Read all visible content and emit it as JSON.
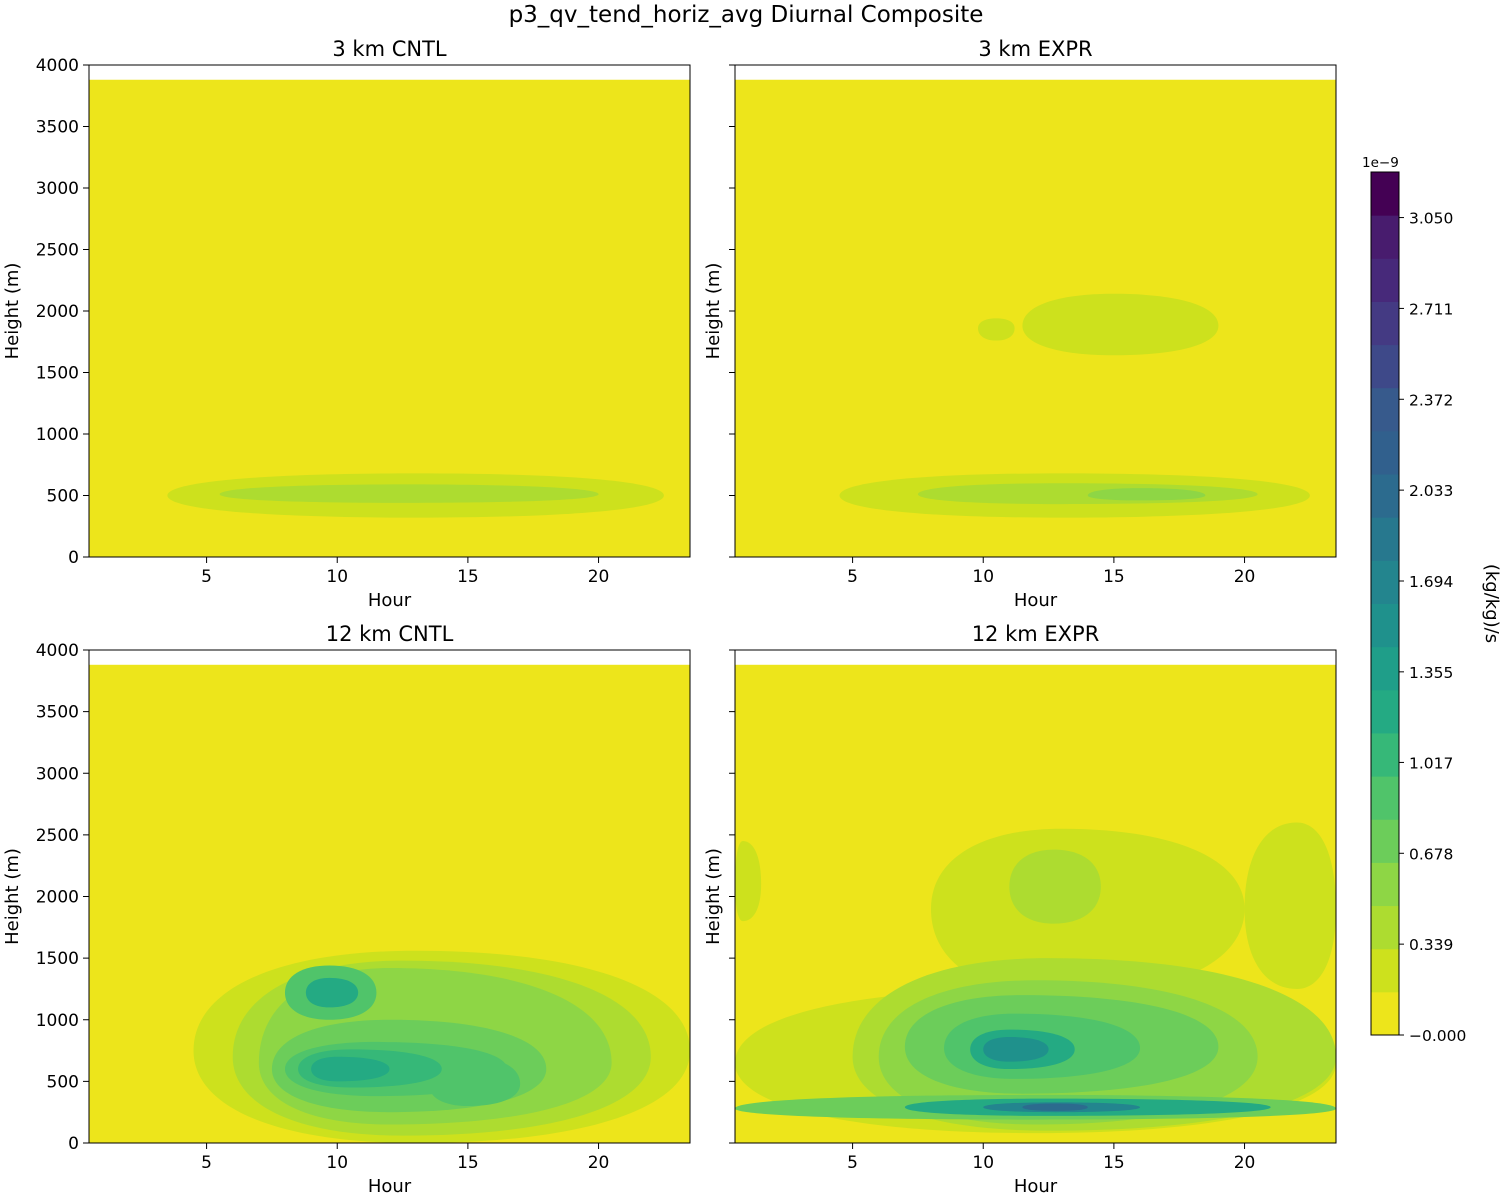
{
  "figure": {
    "suptitle": "p3_qv_tend_horiz_avg Diurnal Composite"
  },
  "chart_data": [
    {
      "type": "heatmap",
      "title": "3 km CNTL",
      "xlabel": "Hour",
      "ylabel": "Height (m)",
      "xlim": [
        0.5,
        23.5
      ],
      "ylim": [
        0,
        4000
      ],
      "xticks": [
        "5",
        "10",
        "15",
        "20"
      ],
      "yticks": [
        "0",
        "500",
        "1000",
        "1500",
        "2000",
        "2500",
        "3000",
        "3500",
        "4000"
      ],
      "data_top": 3880,
      "features": [
        {
          "hour_range": [
            3.5,
            22.5
          ],
          "height_range": [
            320,
            680
          ],
          "center": [
            13,
            500
          ],
          "level": 1
        },
        {
          "hour_range": [
            5.5,
            20.0
          ],
          "height_range": [
            440,
            590
          ],
          "center": [
            12.5,
            510
          ],
          "level": 2
        }
      ]
    },
    {
      "type": "heatmap",
      "title": "3 km EXPR",
      "xlabel": "Hour",
      "ylabel": "Height (m)",
      "xlim": [
        0.5,
        23.5
      ],
      "ylim": [
        0,
        4000
      ],
      "xticks": [
        "5",
        "10",
        "15",
        "20"
      ],
      "yticks": [
        "0",
        "500",
        "1000",
        "1500",
        "2000",
        "2500",
        "3000",
        "3500",
        "4000"
      ],
      "data_top": 3880,
      "features": [
        {
          "hour_range": [
            4.5,
            22.5
          ],
          "height_range": [
            320,
            680
          ],
          "center": [
            13,
            500
          ],
          "level": 1
        },
        {
          "hour_range": [
            7.5,
            20.5
          ],
          "height_range": [
            430,
            600
          ],
          "center": [
            13,
            510
          ],
          "level": 2
        },
        {
          "hour_range": [
            14.0,
            18.5
          ],
          "height_range": [
            460,
            560
          ],
          "center": [
            16,
            500
          ],
          "level": 3
        },
        {
          "hour_range": [
            11.5,
            19.0
          ],
          "height_range": [
            1640,
            2140
          ],
          "center": [
            15,
            1880
          ],
          "level": 1
        },
        {
          "hour_range": [
            9.8,
            11.2
          ],
          "height_range": [
            1760,
            1940
          ],
          "center": [
            10.5,
            1860
          ],
          "level": 1
        }
      ]
    },
    {
      "type": "heatmap",
      "title": "12 km CNTL",
      "xlabel": "Hour",
      "ylabel": "Height (m)",
      "xlim": [
        0.5,
        23.5
      ],
      "ylim": [
        0,
        4000
      ],
      "xticks": [
        "5",
        "10",
        "15",
        "20"
      ],
      "yticks": [
        "0",
        "500",
        "1000",
        "1500",
        "2000",
        "2500",
        "3000",
        "3500",
        "4000"
      ],
      "data_top": 3880,
      "features": [
        {
          "hour_range": [
            4.5,
            23.5
          ],
          "height_range": [
            0,
            1560
          ],
          "center": [
            13,
            750
          ],
          "level": 1
        },
        {
          "hour_range": [
            6.0,
            22.0
          ],
          "height_range": [
            60,
            1480
          ],
          "center": [
            12.5,
            700
          ],
          "level": 2
        },
        {
          "hour_range": [
            7.0,
            20.5
          ],
          "height_range": [
            150,
            1420
          ],
          "center": [
            12,
            650
          ],
          "level": 3
        },
        {
          "hour_range": [
            7.5,
            18.0
          ],
          "height_range": [
            250,
            1000
          ],
          "center": [
            12,
            600
          ],
          "level": 4
        },
        {
          "hour_range": [
            8.0,
            16.5
          ],
          "height_range": [
            380,
            820
          ],
          "center": [
            11.5,
            600
          ],
          "level": 5
        },
        {
          "hour_range": [
            8.5,
            14.0
          ],
          "height_range": [
            450,
            760
          ],
          "center": [
            10.5,
            600
          ],
          "level": 6
        },
        {
          "hour_range": [
            9.0,
            12.0
          ],
          "height_range": [
            500,
            700
          ],
          "center": [
            10,
            600
          ],
          "level": 7
        },
        {
          "hour_range": [
            8.0,
            11.5
          ],
          "height_range": [
            1000,
            1440
          ],
          "center": [
            9.7,
            1220
          ],
          "level": 5
        },
        {
          "hour_range": [
            8.8,
            10.8
          ],
          "height_range": [
            1100,
            1340
          ],
          "center": [
            9.7,
            1220
          ],
          "level": 7
        },
        {
          "hour_range": [
            15.0,
            18.5
          ],
          "height_range": [
            1080,
            1380
          ],
          "center": [
            16.8,
            1230
          ],
          "level": 2
        },
        {
          "hour_range": [
            13.5,
            17.0
          ],
          "height_range": [
            300,
            700
          ],
          "center": [
            15,
            480
          ],
          "level": 5
        }
      ]
    },
    {
      "type": "heatmap",
      "title": "12 km EXPR",
      "xlabel": "Hour",
      "ylabel": "Height (m)",
      "xlim": [
        0.5,
        23.5
      ],
      "ylim": [
        0,
        4000
      ],
      "xticks": [
        "5",
        "10",
        "15",
        "20"
      ],
      "yticks": [
        "0",
        "500",
        "1000",
        "1500",
        "2000",
        "2500",
        "3000",
        "3500",
        "4000"
      ],
      "data_top": 3880,
      "features": [
        {
          "hour_range": [
            0.5,
            23.5
          ],
          "height_range": [
            80,
            1250
          ],
          "center": [
            12,
            650
          ],
          "level": 1
        },
        {
          "hour_range": [
            8.0,
            20.0
          ],
          "height_range": [
            1200,
            2550
          ],
          "center": [
            13,
            1900
          ],
          "level": 1
        },
        {
          "hour_range": [
            20.0,
            23.5
          ],
          "height_range": [
            1250,
            2600
          ],
          "center": [
            22,
            1900
          ],
          "level": 1
        },
        {
          "hour_range": [
            0.5,
            1.5
          ],
          "height_range": [
            1800,
            2450
          ],
          "center": [
            0.8,
            2100
          ],
          "level": 1
        },
        {
          "hour_range": [
            11.0,
            14.5
          ],
          "height_range": [
            1780,
            2380
          ],
          "center": [
            12.7,
            2080
          ],
          "level": 2
        },
        {
          "hour_range": [
            5.0,
            23.5
          ],
          "height_range": [
            100,
            1500
          ],
          "center": [
            12.5,
            700
          ],
          "level": 2
        },
        {
          "hour_range": [
            6.0,
            20.5
          ],
          "height_range": [
            150,
            1320
          ],
          "center": [
            12,
            700
          ],
          "level": 3
        },
        {
          "hour_range": [
            7.0,
            19.0
          ],
          "height_range": [
            400,
            1200
          ],
          "center": [
            11.5,
            780
          ],
          "level": 4
        },
        {
          "hour_range": [
            8.5,
            16.0
          ],
          "height_range": [
            520,
            1050
          ],
          "center": [
            11.2,
            770
          ],
          "level": 5
        },
        {
          "hour_range": [
            9.5,
            13.5
          ],
          "height_range": [
            600,
            920
          ],
          "center": [
            11,
            760
          ],
          "level": 7
        },
        {
          "hour_range": [
            10.0,
            12.5
          ],
          "height_range": [
            660,
            860
          ],
          "center": [
            11,
            760
          ],
          "level": 9
        },
        {
          "hour_range": [
            0.5,
            23.5
          ],
          "height_range": [
            190,
            390
          ],
          "center": [
            12,
            280
          ],
          "level": 4
        },
        {
          "hour_range": [
            7.0,
            21.0
          ],
          "height_range": [
            220,
            360
          ],
          "center": [
            12.5,
            290
          ],
          "level": 7
        },
        {
          "hour_range": [
            10.0,
            16.0
          ],
          "height_range": [
            250,
            330
          ],
          "center": [
            12.8,
            290
          ],
          "level": 10
        },
        {
          "hour_range": [
            11.5,
            14.0
          ],
          "height_range": [
            260,
            320
          ],
          "center": [
            12.8,
            290
          ],
          "level": 12
        }
      ]
    }
  ],
  "colorbar": {
    "label": "(kg/kg)/s",
    "exponent": "1e−9",
    "tick_labels": [
      "−0.000",
      "0.339",
      "0.678",
      "1.017",
      "1.355",
      "1.694",
      "2.033",
      "2.372",
      "2.711",
      "3.050"
    ],
    "tick_values": [
      0.0,
      0.339,
      0.678,
      1.017,
      1.355,
      1.694,
      2.033,
      2.372,
      2.711,
      3.05
    ],
    "vmin": 0.0,
    "vmax": 3.22,
    "n_levels": 19,
    "colors": [
      "#ede51b",
      "#cde11d",
      "#addc30",
      "#8ed645",
      "#6ccd5a",
      "#50c46a",
      "#36b878",
      "#24aa83",
      "#1f9e89",
      "#1f918c",
      "#23858e",
      "#27788e",
      "#2c6b8e",
      "#31608d",
      "#375a8c",
      "#3e4989",
      "#443a83",
      "#47297a",
      "#481c6e",
      "#440154"
    ]
  }
}
